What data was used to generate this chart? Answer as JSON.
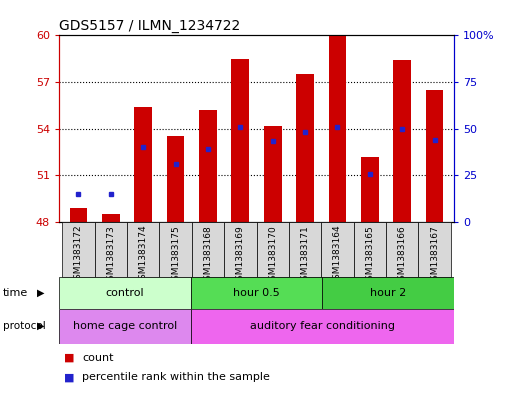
{
  "title": "GDS5157 / ILMN_1234722",
  "samples": [
    "GSM1383172",
    "GSM1383173",
    "GSM1383174",
    "GSM1383175",
    "GSM1383168",
    "GSM1383169",
    "GSM1383170",
    "GSM1383171",
    "GSM1383164",
    "GSM1383165",
    "GSM1383166",
    "GSM1383167"
  ],
  "bar_tops": [
    48.9,
    48.5,
    55.4,
    53.5,
    55.2,
    58.5,
    54.15,
    57.5,
    60.0,
    52.2,
    58.4,
    56.5
  ],
  "bar_bottom": 48.0,
  "percentile_values": [
    49.8,
    49.8,
    52.8,
    51.7,
    52.7,
    54.1,
    53.2,
    53.8,
    54.1,
    51.1,
    54.0,
    53.3
  ],
  "ylim_left": [
    48,
    60
  ],
  "ylim_right": [
    0,
    100
  ],
  "yticks_left": [
    48,
    51,
    54,
    57,
    60
  ],
  "yticks_right": [
    0,
    25,
    50,
    75,
    100
  ],
  "bar_color": "#cc0000",
  "percentile_color": "#2222cc",
  "time_groups": [
    {
      "label": "control",
      "start": 0,
      "end": 4,
      "color": "#ccffcc"
    },
    {
      "label": "hour 0.5",
      "start": 4,
      "end": 8,
      "color": "#55dd55"
    },
    {
      "label": "hour 2",
      "start": 8,
      "end": 12,
      "color": "#44cc44"
    }
  ],
  "protocol_groups": [
    {
      "label": "home cage control",
      "start": 0,
      "end": 4,
      "color": "#dd88ee"
    },
    {
      "label": "auditory fear conditioning",
      "start": 4,
      "end": 12,
      "color": "#ee66ee"
    }
  ],
  "sample_box_colors": [
    "#dddddd",
    "#dddddd",
    "#dddddd",
    "#dddddd",
    "#dddddd",
    "#dddddd",
    "#dddddd",
    "#dddddd",
    "#dddddd",
    "#dddddd",
    "#dddddd",
    "#dddddd"
  ],
  "legend_count_color": "#cc0000",
  "legend_percentile_color": "#2222cc",
  "axis_left_color": "#cc0000",
  "axis_right_color": "#0000cc"
}
